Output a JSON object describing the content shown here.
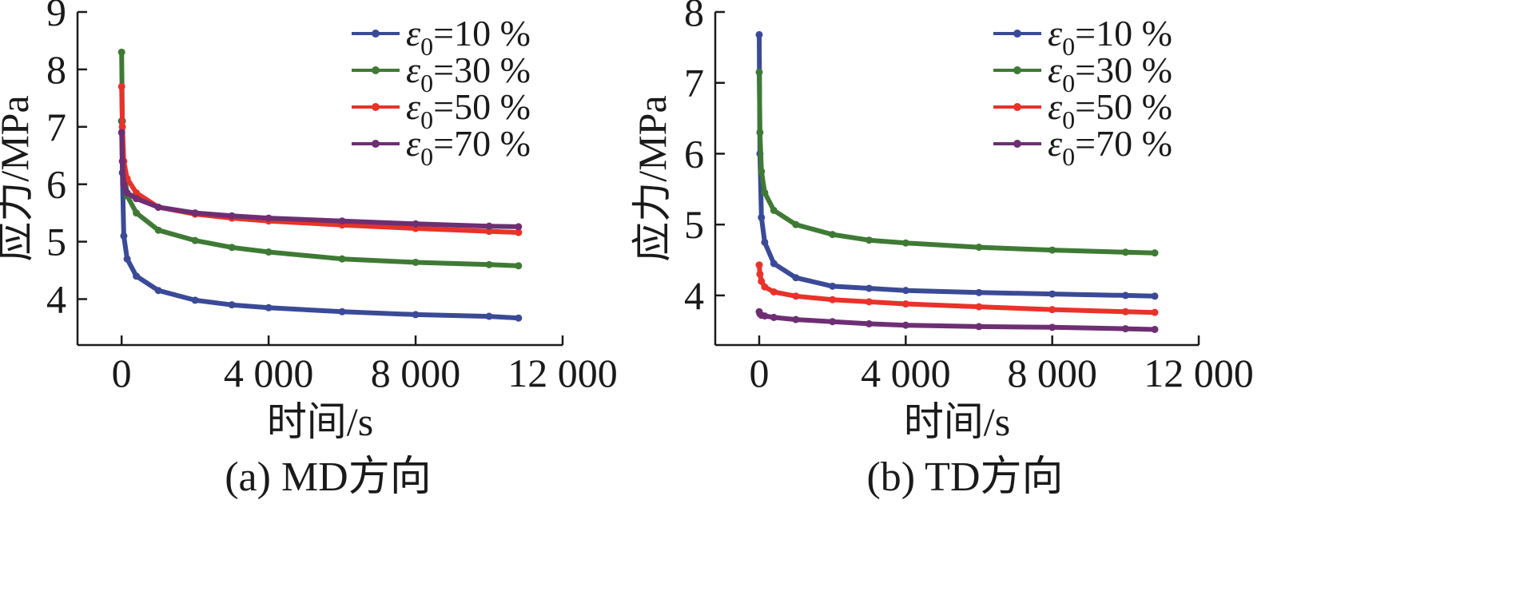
{
  "chart_data": [
    {
      "type": "line",
      "caption": "(a) MD方向",
      "xlabel": "时间/s",
      "ylabel": "应力/MPa",
      "xlim": [
        -1200,
        12000
      ],
      "ylim": [
        3.2,
        9
      ],
      "xticks": [
        0,
        4000,
        8000,
        12000
      ],
      "xtick_labels": [
        "0",
        "4 000",
        "8 000",
        "12 000"
      ],
      "yticks": [
        4,
        5,
        6,
        7,
        8,
        9
      ],
      "ytick_labels": [
        "4",
        "5",
        "6",
        "7",
        "8",
        "9"
      ],
      "grid": false,
      "legend_position": "top-right",
      "series": [
        {
          "name": "ε0=10 %",
          "legend_main": "ε",
          "legend_sub": "0",
          "legend_rest": "=10 %",
          "color": "#3b4a96",
          "points": [
            [
              0,
              7.1
            ],
            [
              20,
              6.2
            ],
            [
              60,
              5.1
            ],
            [
              150,
              4.7
            ],
            [
              400,
              4.4
            ],
            [
              1000,
              4.15
            ],
            [
              2000,
              3.98
            ],
            [
              3000,
              3.9
            ],
            [
              4000,
              3.85
            ],
            [
              6000,
              3.78
            ],
            [
              8000,
              3.73
            ],
            [
              10000,
              3.7
            ],
            [
              10800,
              3.67
            ]
          ]
        },
        {
          "name": "ε0=30 %",
          "legend_main": "ε",
          "legend_sub": "0",
          "legend_rest": "=30 %",
          "color": "#3f7a35",
          "points": [
            [
              0,
              8.3
            ],
            [
              20,
              7.1
            ],
            [
              60,
              6.3
            ],
            [
              150,
              5.8
            ],
            [
              400,
              5.5
            ],
            [
              1000,
              5.2
            ],
            [
              2000,
              5.02
            ],
            [
              3000,
              4.9
            ],
            [
              4000,
              4.82
            ],
            [
              6000,
              4.7
            ],
            [
              8000,
              4.64
            ],
            [
              10000,
              4.6
            ],
            [
              10800,
              4.58
            ]
          ]
        },
        {
          "name": "ε0=50 %",
          "legend_main": "ε",
          "legend_sub": "0",
          "legend_rest": "=50 %",
          "color": "#e8322a",
          "points": [
            [
              0,
              7.7
            ],
            [
              20,
              7.0
            ],
            [
              60,
              6.4
            ],
            [
              150,
              6.1
            ],
            [
              400,
              5.85
            ],
            [
              1000,
              5.6
            ],
            [
              2000,
              5.48
            ],
            [
              3000,
              5.41
            ],
            [
              4000,
              5.36
            ],
            [
              6000,
              5.29
            ],
            [
              8000,
              5.23
            ],
            [
              10000,
              5.18
            ],
            [
              10800,
              5.16
            ]
          ]
        },
        {
          "name": "ε0=70 %",
          "legend_main": "ε",
          "legend_sub": "0",
          "legend_rest": "=70 %",
          "color": "#6e2e73",
          "points": [
            [
              0,
              6.9
            ],
            [
              20,
              6.4
            ],
            [
              60,
              6.0
            ],
            [
              150,
              5.85
            ],
            [
              400,
              5.75
            ],
            [
              1000,
              5.6
            ],
            [
              2000,
              5.5
            ],
            [
              3000,
              5.45
            ],
            [
              4000,
              5.41
            ],
            [
              6000,
              5.36
            ],
            [
              8000,
              5.31
            ],
            [
              10000,
              5.27
            ],
            [
              10800,
              5.26
            ]
          ]
        }
      ]
    },
    {
      "type": "line",
      "caption": "(b) TD方向",
      "xlabel": "时间/s",
      "ylabel": "应力/MPa",
      "xlim": [
        -1200,
        12000
      ],
      "ylim": [
        3.3,
        8
      ],
      "xticks": [
        0,
        4000,
        8000,
        12000
      ],
      "xtick_labels": [
        "0",
        "4 000",
        "8 000",
        "12 000"
      ],
      "yticks": [
        4,
        5,
        6,
        7,
        8
      ],
      "ytick_labels": [
        "4",
        "5",
        "6",
        "7",
        "8"
      ],
      "grid": false,
      "legend_position": "top-right",
      "series": [
        {
          "name": "ε0=10 %",
          "legend_main": "ε",
          "legend_sub": "0",
          "legend_rest": "=10 %",
          "color": "#3b4a96",
          "points": [
            [
              0,
              7.68
            ],
            [
              20,
              6.0
            ],
            [
              60,
              5.1
            ],
            [
              150,
              4.75
            ],
            [
              400,
              4.45
            ],
            [
              1000,
              4.25
            ],
            [
              2000,
              4.13
            ],
            [
              3000,
              4.1
            ],
            [
              4000,
              4.07
            ],
            [
              6000,
              4.04
            ],
            [
              8000,
              4.02
            ],
            [
              10000,
              4.0
            ],
            [
              10800,
              3.99
            ]
          ]
        },
        {
          "name": "ε0=30 %",
          "legend_main": "ε",
          "legend_sub": "0",
          "legend_rest": "=30 %",
          "color": "#3f7a35",
          "points": [
            [
              0,
              7.15
            ],
            [
              20,
              6.3
            ],
            [
              60,
              5.75
            ],
            [
              150,
              5.45
            ],
            [
              400,
              5.2
            ],
            [
              1000,
              5.0
            ],
            [
              2000,
              4.86
            ],
            [
              3000,
              4.78
            ],
            [
              4000,
              4.74
            ],
            [
              6000,
              4.68
            ],
            [
              8000,
              4.64
            ],
            [
              10000,
              4.61
            ],
            [
              10800,
              4.6
            ]
          ]
        },
        {
          "name": "ε0=50 %",
          "legend_main": "ε",
          "legend_sub": "0",
          "legend_rest": "=50 %",
          "color": "#e8322a",
          "points": [
            [
              0,
              4.43
            ],
            [
              20,
              4.3
            ],
            [
              60,
              4.2
            ],
            [
              150,
              4.12
            ],
            [
              400,
              4.05
            ],
            [
              1000,
              3.99
            ],
            [
              2000,
              3.94
            ],
            [
              3000,
              3.91
            ],
            [
              4000,
              3.88
            ],
            [
              6000,
              3.84
            ],
            [
              8000,
              3.8
            ],
            [
              10000,
              3.77
            ],
            [
              10800,
              3.76
            ]
          ]
        },
        {
          "name": "ε0=70 %",
          "legend_main": "ε",
          "legend_sub": "0",
          "legend_rest": "=70 %",
          "color": "#6e2e73",
          "points": [
            [
              0,
              3.77
            ],
            [
              20,
              3.74
            ],
            [
              60,
              3.72
            ],
            [
              150,
              3.71
            ],
            [
              400,
              3.69
            ],
            [
              1000,
              3.66
            ],
            [
              2000,
              3.63
            ],
            [
              3000,
              3.6
            ],
            [
              4000,
              3.58
            ],
            [
              6000,
              3.56
            ],
            [
              8000,
              3.55
            ],
            [
              10000,
              3.53
            ],
            [
              10800,
              3.52
            ]
          ]
        }
      ]
    }
  ]
}
